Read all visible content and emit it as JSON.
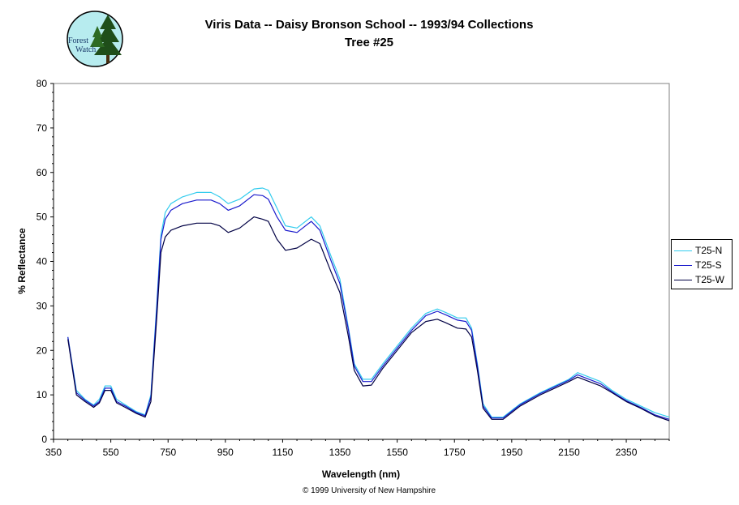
{
  "logo": {
    "line1": "Forest",
    "line2": "Watch"
  },
  "chart_data": {
    "type": "line",
    "title": "Viris Data -- Daisy Bronson School -- 1993/94 Collections",
    "subtitle": "Tree #25",
    "xlabel": "Wavelength (nm)",
    "ylabel": "% Reflectance",
    "xlim": [
      350,
      2500
    ],
    "ylim": [
      0,
      80
    ],
    "xticks": [
      350,
      550,
      750,
      950,
      1150,
      1350,
      1550,
      1750,
      1950,
      2150,
      2350
    ],
    "yticks": [
      0,
      10,
      20,
      30,
      40,
      50,
      60,
      70,
      80
    ],
    "grid": false,
    "legend_position": "right",
    "series": [
      {
        "name": "T25-N",
        "color": "#33ccee",
        "x": [
          400,
          430,
          460,
          490,
          510,
          530,
          550,
          570,
          600,
          640,
          670,
          690,
          710,
          725,
          740,
          760,
          800,
          850,
          900,
          930,
          960,
          1000,
          1050,
          1080,
          1100,
          1130,
          1160,
          1200,
          1250,
          1280,
          1320,
          1350,
          1380,
          1400,
          1430,
          1460,
          1500,
          1550,
          1600,
          1650,
          1690,
          1720,
          1760,
          1790,
          1810,
          1830,
          1850,
          1880,
          1920,
          1980,
          2050,
          2100,
          2150,
          2180,
          2220,
          2260,
          2300,
          2350,
          2400,
          2450,
          2500
        ],
        "y": [
          23,
          11,
          9,
          7.7,
          9,
          12,
          12,
          9,
          7.8,
          6.2,
          5.5,
          10,
          30,
          46,
          51,
          53,
          54.5,
          55.5,
          55.5,
          54.5,
          53,
          54,
          56.3,
          56.5,
          56,
          52,
          48,
          47.5,
          50,
          48,
          41,
          36,
          25,
          17,
          13.5,
          13.5,
          17,
          21,
          25,
          28.3,
          29.3,
          28.5,
          27.3,
          27.3,
          25,
          17,
          8,
          5,
          5,
          8,
          10.5,
          12,
          13.5,
          15,
          14,
          13,
          11,
          9,
          7.5,
          6,
          5
        ]
      },
      {
        "name": "T25-S",
        "color": "#1a1acc",
        "x": [
          400,
          430,
          460,
          490,
          510,
          530,
          550,
          570,
          600,
          640,
          670,
          690,
          710,
          725,
          740,
          760,
          800,
          850,
          900,
          930,
          960,
          1000,
          1050,
          1080,
          1100,
          1130,
          1160,
          1200,
          1250,
          1280,
          1320,
          1350,
          1380,
          1400,
          1430,
          1460,
          1500,
          1550,
          1600,
          1650,
          1690,
          1720,
          1760,
          1790,
          1810,
          1830,
          1850,
          1880,
          1920,
          1980,
          2050,
          2100,
          2150,
          2180,
          2220,
          2260,
          2300,
          2350,
          2400,
          2450,
          2500
        ],
        "y": [
          23,
          10.5,
          8.8,
          7.5,
          8.5,
          11.5,
          11.5,
          8.5,
          7.5,
          6,
          5.3,
          9.5,
          29,
          45,
          49.5,
          51.5,
          53,
          53.8,
          53.8,
          53,
          51.5,
          52.5,
          55,
          54.8,
          54,
          50,
          47,
          46.5,
          49,
          47,
          40,
          35,
          24.5,
          16.5,
          13,
          13,
          16.5,
          20.5,
          24.5,
          27.8,
          28.8,
          28,
          26.8,
          26.5,
          24.5,
          16.5,
          7.5,
          4.8,
          4.8,
          7.8,
          10.3,
          11.8,
          13.3,
          14.5,
          13.5,
          12.5,
          10.7,
          8.7,
          7.2,
          5.5,
          4.5
        ]
      },
      {
        "name": "T25-W",
        "color": "#000044",
        "x": [
          400,
          430,
          460,
          490,
          510,
          530,
          550,
          570,
          600,
          640,
          670,
          690,
          710,
          725,
          740,
          760,
          800,
          850,
          900,
          930,
          960,
          1000,
          1050,
          1080,
          1100,
          1130,
          1160,
          1200,
          1250,
          1280,
          1320,
          1350,
          1380,
          1400,
          1430,
          1460,
          1500,
          1550,
          1600,
          1650,
          1690,
          1720,
          1760,
          1790,
          1810,
          1830,
          1850,
          1880,
          1920,
          1980,
          2050,
          2100,
          2150,
          2180,
          2220,
          2260,
          2300,
          2350,
          2400,
          2450,
          2500
        ],
        "y": [
          22.5,
          10,
          8.5,
          7.2,
          8.2,
          11,
          11,
          8.2,
          7.2,
          5.8,
          5,
          8.5,
          27,
          42,
          45.5,
          47,
          48,
          48.6,
          48.6,
          48,
          46.5,
          47.5,
          50,
          49.5,
          49,
          45,
          42.5,
          43,
          45,
          44,
          37.5,
          33,
          23,
          15.5,
          12,
          12.2,
          16,
          20,
          24,
          26.5,
          27,
          26.2,
          25,
          24.8,
          23,
          15.5,
          7,
          4.5,
          4.5,
          7.5,
          10,
          11.5,
          13,
          14,
          13,
          12,
          10.5,
          8.5,
          7,
          5.3,
          4.2
        ]
      }
    ]
  },
  "copyright": "© 1999 University of New Hampshire"
}
